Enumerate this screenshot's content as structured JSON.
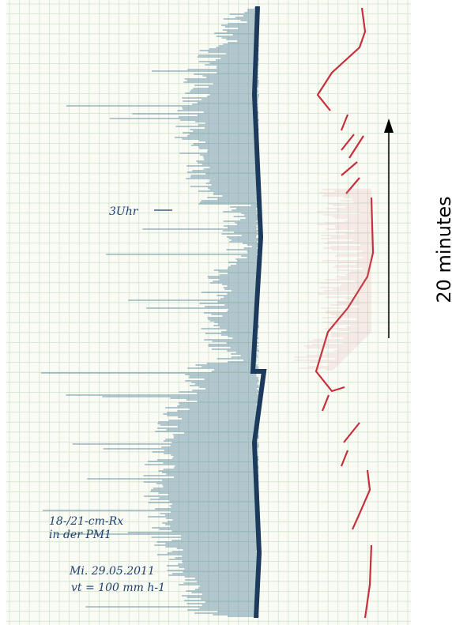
{
  "annotations": {
    "time_mark": "3Uhr",
    "receiver_line1": "18-/21-cm-Rx",
    "receiver_line2": "in der PM1",
    "date": "Mi. 29.05.2011",
    "speed": "vt = 100 mm h-1"
  },
  "arrow_label": "20 minutes"
}
